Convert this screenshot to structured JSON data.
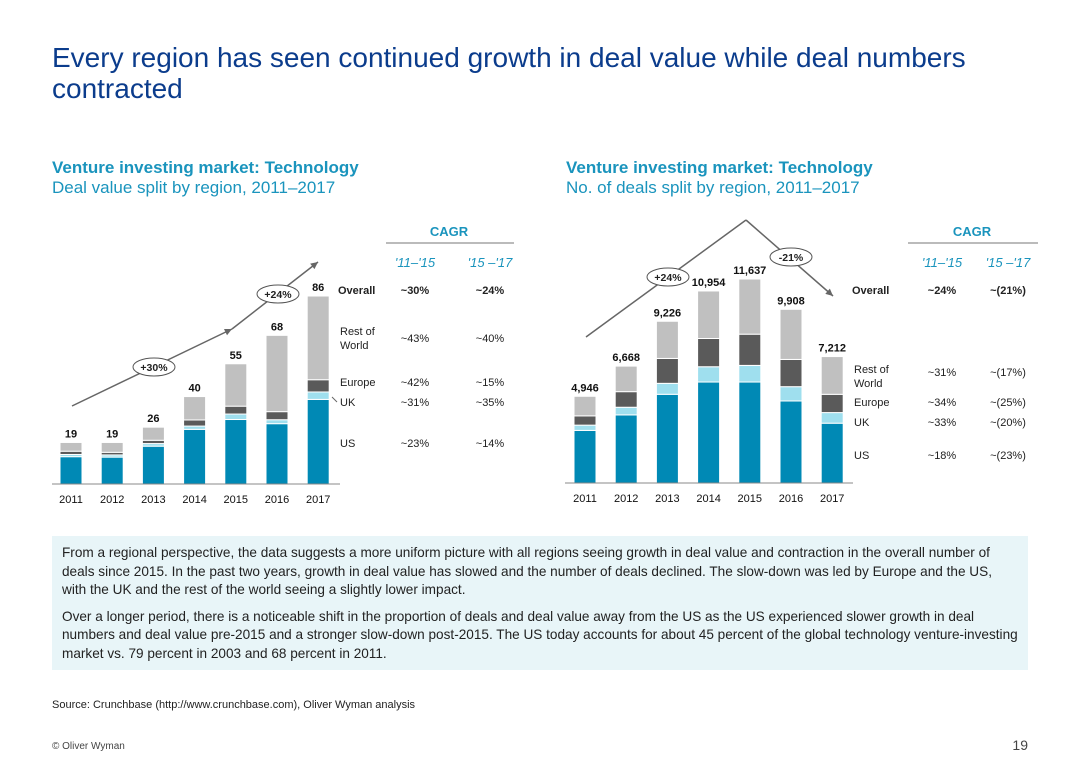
{
  "title": "Every region has seen continued growth in deal value while deal numbers contracted",
  "colors": {
    "us": "#0089b5",
    "uk": "#9fdfee",
    "europe": "#5a5a5a",
    "rest_of_world": "#c0c0c0",
    "accent": "#1a94bd",
    "title": "#0b3c8c"
  },
  "chart_data": [
    {
      "type": "bar",
      "stacked": true,
      "heading": "Venture investing market: Technology",
      "subtitle": "Deal value split by region, 2011–2017",
      "categories": [
        "2011",
        "2012",
        "2013",
        "2014",
        "2015",
        "2016",
        "2017"
      ],
      "totals": [
        "19",
        "19",
        "26",
        "40",
        "55",
        "68",
        "86"
      ],
      "total_values": [
        19,
        19,
        26,
        40,
        55,
        68,
        86
      ],
      "series": [
        {
          "name": "US",
          "values": [
            12.5,
            12.3,
            17.3,
            25,
            29.5,
            27.6,
            38.7
          ]
        },
        {
          "name": "UK",
          "values": [
            1,
            1,
            1.2,
            1.5,
            2.5,
            1.8,
            3.4
          ]
        },
        {
          "name": "Europe",
          "values": [
            1.5,
            1.2,
            1.5,
            2.8,
            3.6,
            3.7,
            5.6
          ]
        },
        {
          "name": "Rest of World",
          "values": [
            4,
            4.5,
            6,
            10.7,
            19.4,
            34.9,
            38.3
          ]
        }
      ],
      "ylim": [
        0,
        90
      ],
      "growth_annotations": [
        "+30%",
        "+24%"
      ],
      "cagr": {
        "header": "CAGR",
        "periods": [
          "'11–'15",
          "'15 –'17"
        ],
        "rows": [
          {
            "label": "Overall",
            "values": [
              "~30%",
              "~24%"
            ]
          },
          {
            "label": "Rest of World",
            "values": [
              "~43%",
              "~40%"
            ]
          },
          {
            "label": "Europe",
            "values": [
              "~42%",
              "~15%"
            ]
          },
          {
            "label": "UK",
            "values": [
              "~31%",
              "~35%"
            ]
          },
          {
            "label": "US",
            "values": [
              "~23%",
              "~14%"
            ]
          }
        ]
      }
    },
    {
      "type": "bar",
      "stacked": true,
      "heading": "Venture investing market: Technology",
      "subtitle": "No. of deals split by region, 2011–2017",
      "categories": [
        "2011",
        "2012",
        "2013",
        "2014",
        "2015",
        "2016",
        "2017"
      ],
      "totals": [
        "4,946",
        "6,668",
        "9,226",
        "10,954",
        "11,637",
        "9,908",
        "7,212"
      ],
      "total_values": [
        4946,
        6668,
        9226,
        10954,
        11637,
        9908,
        7212
      ],
      "series": [
        {
          "name": "US",
          "values": [
            3000,
            3885,
            5060,
            5760,
            5760,
            4680,
            3411
          ]
        },
        {
          "name": "UK",
          "values": [
            300,
            436,
            625,
            872,
            948,
            815,
            606
          ]
        },
        {
          "name": "Europe",
          "values": [
            530,
            890,
            1421,
            1611,
            1781,
            1554,
            1042
          ]
        },
        {
          "name": "Rest of World",
          "values": [
            1116,
            1457,
            2120,
            2711,
            3148,
            2859,
            2153
          ]
        }
      ],
      "ylim": [
        0,
        12500
      ],
      "growth_annotations": [
        "+24%",
        "-21%"
      ],
      "cagr": {
        "header": "CAGR",
        "periods": [
          "'11–'15",
          "'15 –'17"
        ],
        "rows": [
          {
            "label": "Overall",
            "values": [
              "~24%",
              "~(21%)"
            ]
          },
          {
            "label": "Rest of World",
            "values": [
              "~31%",
              "~(17%)"
            ]
          },
          {
            "label": "Europe",
            "values": [
              "~34%",
              "~(25%)"
            ]
          },
          {
            "label": "UK",
            "values": [
              "~33%",
              "~(20%)"
            ]
          },
          {
            "label": "US",
            "values": [
              "~18%",
              "~(23%)"
            ]
          }
        ]
      }
    }
  ],
  "note": {
    "paragraphs": [
      "From a regional perspective, the data suggests a more uniform picture with all regions seeing growth in deal value and contraction in the overall number of deals since 2015. In the past two years, growth in deal value has slowed and the number of deals declined. The slow-down was led by Europe and the US, with the UK and the rest of the world seeing a slightly lower impact.",
      "Over a longer period, there is a noticeable shift in the proportion of deals and deal value away from the US as the US experienced slower growth in deal numbers and deal value pre-2015 and a stronger slow-down post-2015. The US today accounts for about 45 percent of the global technology venture-investing market vs. 79 percent in 2003 and 68 percent in 2011."
    ]
  },
  "source": "Source: Crunchbase (http://www.crunchbase.com), Oliver Wyman analysis",
  "footer": {
    "copyright": "© Oliver Wyman",
    "page_number": "19"
  }
}
